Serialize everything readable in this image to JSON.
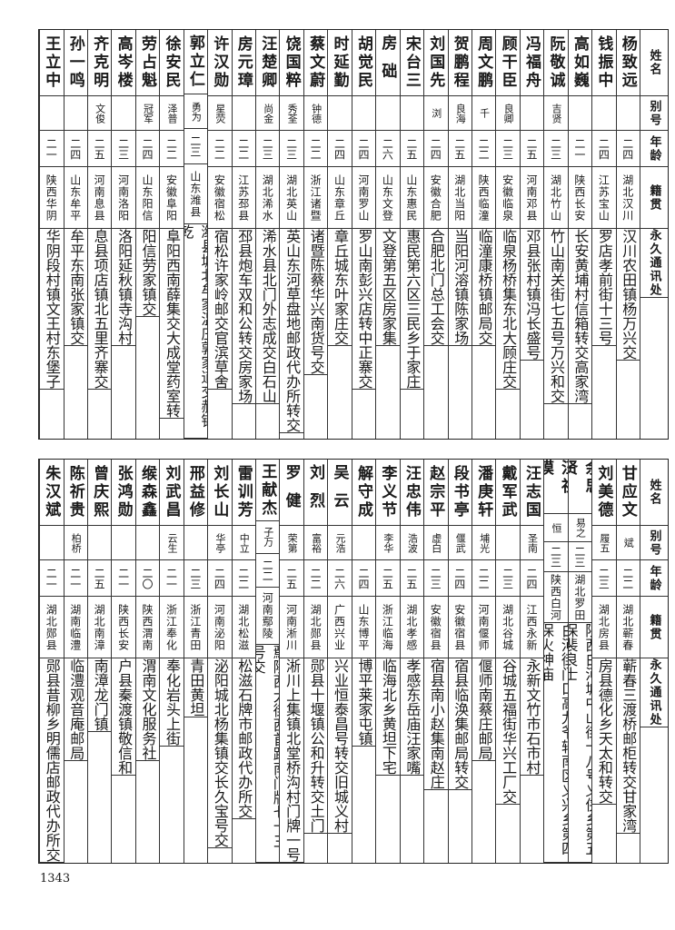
{
  "headers": {
    "name": "姓名",
    "alias": "别号",
    "age": "年龄",
    "origin": "籍贯",
    "address": "永久通讯处"
  },
  "top_rows": [
    {
      "name": "杨致远",
      "alias": "",
      "age": "二四",
      "origin": "湖北汉川",
      "address": "汉川农田镇杨万兴交"
    },
    {
      "name": "钱振中",
      "alias": "",
      "age": "二四",
      "origin": "江苏宝山",
      "address": "罗店孝前街十三号"
    },
    {
      "name": "高如巍",
      "alias": "",
      "age": "二一",
      "origin": "陕西长安",
      "address": "长安黄埔村信箱转交高家湾"
    },
    {
      "name": "阮敬诚",
      "alias": "吉贤",
      "age": "二三",
      "origin": "湖北竹山",
      "address": "竹山南关街七五号万兴和交"
    },
    {
      "name": "冯福舟",
      "alias": "",
      "age": "二五",
      "origin": "河南邓县",
      "address": "邓县张村镇冯长盛号"
    },
    {
      "name": "顾干臣",
      "alias": "良卿",
      "age": "二三",
      "origin": "安徽临泉",
      "address": "临泉杨桥集东北大顾庄交"
    },
    {
      "name": "周文鹏",
      "alias": "千",
      "age": "二二",
      "origin": "陕西临潼",
      "address": "临潼康桥镇邮局交"
    },
    {
      "name": "贺鹏程",
      "alias": "良海",
      "age": "二五",
      "origin": "湖北当阳",
      "address": "当阳河溶镇陈家场"
    },
    {
      "name": "刘国先",
      "alias": "浏",
      "age": "二四",
      "origin": "安徽合肥",
      "address": "合肥北门总工会交"
    },
    {
      "name": "宋台三",
      "alias": "",
      "age": "二五",
      "origin": "山东惠民",
      "address": "惠民第六区三民乡于家庄"
    },
    {
      "name": "房础",
      "alias": "",
      "age": "二六",
      "origin": "山东文登",
      "address": "文登第五区房家集"
    },
    {
      "name": "胡觉民",
      "alias": "",
      "age": "二四",
      "origin": "河南罗山",
      "address": "罗山南彭兴店转中正寨交"
    },
    {
      "name": "时延勤",
      "alias": "",
      "age": "二四",
      "origin": "山东章丘",
      "address": "章丘城东叶家庄交"
    },
    {
      "name": "蔡文蔚",
      "alias": "钟德",
      "age": "二二",
      "origin": "浙江诸暨",
      "address": "诸暨陈蔡华兴南货号交"
    },
    {
      "name": "饶国粹",
      "alias": "秀荃",
      "age": "二三",
      "origin": "湖北英山",
      "address": "英山东河草盘地邮政代办所转交"
    },
    {
      "name": "汪楚卿",
      "alias": "尚金",
      "age": "二三",
      "origin": "湖北浠水",
      "address": "浠水县北门外志成交白石山"
    },
    {
      "name": "房元璋",
      "alias": "",
      "age": "二二",
      "origin": "江苏邳县",
      "address": "邳县炮车双和公转交房家场"
    },
    {
      "name": "许汉勋",
      "alias": "星荧",
      "age": "二二",
      "origin": "安徽宿松",
      "address": "宿松许家岭邮交官滨草舍"
    },
    {
      "name": "郭立仁",
      "alias": "勇为",
      "age": "二三",
      "origin": "山东潍县",
      "address": "潍县城北牟家温庄郭家道交郝锡乾"
    },
    {
      "name": "徐安民",
      "alias": "泽普",
      "age": "二二",
      "origin": "安徽阜阳",
      "address": "阜阳西南薛集交大成堂药室转"
    },
    {
      "name": "劳占魁",
      "alias": "冠军",
      "age": "二四",
      "origin": "山东阳信",
      "address": "阳信劳家镇交"
    },
    {
      "name": "高岑楼",
      "alias": "",
      "age": "二三",
      "origin": "河南洛阳",
      "address": "洛阳延秋镇寺沟村"
    },
    {
      "name": "齐克明",
      "alias": "文俊",
      "age": "二五",
      "origin": "河南息县",
      "address": "息县项店镇北五里齐寨交"
    },
    {
      "name": "孙一鸣",
      "alias": "",
      "age": "二四",
      "origin": "山东牟平",
      "address": "牟平东南张家镇交"
    },
    {
      "name": "王立中",
      "alias": "",
      "age": "二一",
      "origin": "陕西华阴",
      "address": "华阴段村镇文王村东堡子"
    }
  ],
  "bottom_rows": [
    {
      "name": "甘应文",
      "alias": "斌",
      "age": "二二",
      "origin": "湖北蕲春",
      "address": "蕲春三渡桥邮柜转交甘家湾"
    },
    {
      "name": "刘美德",
      "alias": "履五",
      "age": "二三",
      "origin": "湖北房县",
      "address": "房县德化乡天太和转交"
    },
    {
      "name": "余思贤",
      "alias": "易之",
      "age": "二三",
      "origin": "湖北罗田",
      "address": "陕西白河城中山街十八号义侠乡第五保裴良士"
    },
    {
      "name": "汪祖谟",
      "alias": "恒",
      "age": "二三",
      "origin": "陕西白河",
      "address": "白河街门口高九爷转南区义兴乡第四保火神庙"
    },
    {
      "name": "汪志国",
      "alias": "圣南",
      "age": "二四",
      "origin": "江西永新",
      "address": "永新文竹市石市村"
    },
    {
      "name": "戴军武",
      "alias": "",
      "age": "二三",
      "origin": "湖北谷城",
      "address": "谷城五福街华兴工厂交"
    },
    {
      "name": "潘庚轩",
      "alias": "埔光",
      "age": "二二",
      "origin": "河南偃师",
      "address": "偃师南蔡庄邮局"
    },
    {
      "name": "段书亭",
      "alias": "偃武",
      "age": "二四",
      "origin": "安徽宿县",
      "address": "宿县临涣集邮局转交"
    },
    {
      "name": "赵宗平",
      "alias": "虚白",
      "age": "二三",
      "origin": "安徽宿县",
      "address": "宿县南小赵集南赵庄"
    },
    {
      "name": "汪忠伟",
      "alias": "浩波",
      "age": "二五",
      "origin": "湖北孝感",
      "address": "孝感东岳庙汪家嘴"
    },
    {
      "name": "李义节",
      "alias": "李华",
      "age": "二五",
      "origin": "浙江临海",
      "address": "临海北乡黄坦下宅"
    },
    {
      "name": "解守成",
      "alias": "",
      "age": "二四",
      "origin": "山东博平",
      "address": "博平莱家屯镇"
    },
    {
      "name": "吴云",
      "alias": "元浩",
      "age": "二六",
      "origin": "广西兴业",
      "address": "兴业恒泰昌号转交旧城义村"
    },
    {
      "name": "刘烈",
      "alias": "富裕",
      "age": "二二",
      "origin": "湖北郧县",
      "address": "郧县十堰镇公和升转交土门"
    },
    {
      "name": "罗健",
      "alias": "荣第",
      "age": "二五",
      "origin": "河南淅川",
      "address": "淅川上集镇北堂桥沟村门牌一号"
    },
    {
      "name": "王献杰",
      "alias": "子万",
      "age": "二二",
      "origin": "河南鄢陵",
      "address": "鄢陵西大街西首路南门牌七十三号交"
    },
    {
      "name": "雷训芳",
      "alias": "中立",
      "age": "二二",
      "origin": "湖北松滋",
      "address": "松滋石牌市邮政代办所交"
    },
    {
      "name": "刘长山",
      "alias": "华亭",
      "age": "二四",
      "origin": "河南泌阳",
      "address": "泌阳城北杨集镇交长久宝号交"
    },
    {
      "name": "邢益修",
      "alias": "",
      "age": "二三",
      "origin": "浙江青田",
      "address": "青田黄坦"
    },
    {
      "name": "刘武昌",
      "alias": "云生",
      "age": "二一",
      "origin": "浙江奉化",
      "address": "奉化岩头上街"
    },
    {
      "name": "缑森鑫",
      "alias": "",
      "age": "二〇",
      "origin": "陕西渭南",
      "address": "渭南文化服务社"
    },
    {
      "name": "张鸿勋",
      "alias": "",
      "age": "二一",
      "origin": "陕西长安",
      "address": "户县秦渡镇敬信和"
    },
    {
      "name": "曾庆熙",
      "alias": "",
      "age": "二五",
      "origin": "湖北南漳",
      "address": "南漳龙门镇"
    },
    {
      "name": "陈祈贵",
      "alias": "柏桥",
      "age": "二一",
      "origin": "湖南临澧",
      "address": "临澧观音庵邮局"
    },
    {
      "name": "朱汉斌",
      "alias": "",
      "age": "二一",
      "origin": "湖北郧县",
      "address": "郧县昔柳乡明儒店邮政代办所交"
    }
  ],
  "page_number": "1343"
}
